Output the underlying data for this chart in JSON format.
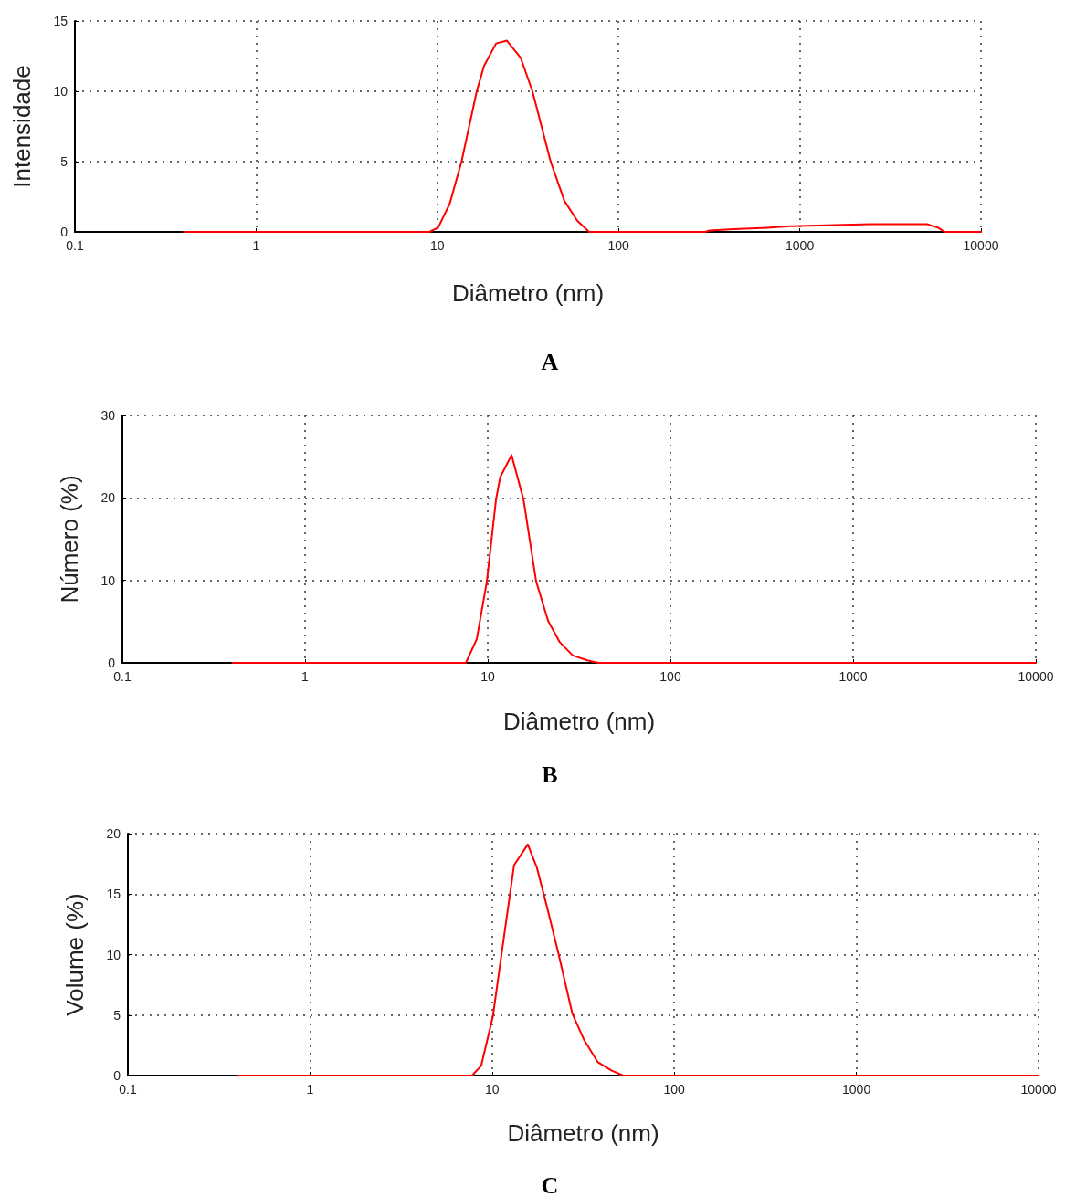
{
  "chart_data": [
    {
      "type": "line",
      "title": "A",
      "xlabel": "Diâmetro (nm)",
      "ylabel": "Intensidade",
      "log": "x",
      "grid": true,
      "line_style": "solid",
      "marker": "none",
      "xlim": [
        0.1,
        10000
      ],
      "xticks": [
        0.1,
        1,
        10,
        100,
        1000,
        10000
      ],
      "ylim": [
        0,
        15
      ],
      "yticks": [
        0,
        5,
        10,
        15
      ],
      "color": "#ff0000",
      "x": [
        0.4,
        9.03,
        10.1,
        11.7,
        13.6,
        16.5,
        18.1,
        21.1,
        24.2,
        28.8,
        33.5,
        42.2,
        50.3,
        59.2,
        68.8,
        300,
        318,
        431,
        661,
        885,
        2455,
        5047,
        5800,
        6300,
        10000
      ],
      "values": [
        0,
        0,
        0.3,
        2,
        5,
        10,
        11.8,
        13.4,
        13.6,
        12.4,
        10,
        5,
        2.2,
        0.8,
        0,
        0,
        0.1,
        0.2,
        0.3,
        0.4,
        0.55,
        0.55,
        0.3,
        0,
        0
      ]
    },
    {
      "type": "line",
      "title": "B",
      "xlabel": "Diâmetro (nm)",
      "ylabel": "Número (%)",
      "log": "x",
      "grid": true,
      "line_style": "solid",
      "marker": "none",
      "xlim": [
        0.1,
        10000
      ],
      "xticks": [
        0.1,
        1,
        10,
        100,
        1000,
        10000
      ],
      "ylim": [
        0,
        30
      ],
      "yticks": [
        0,
        10,
        20,
        30
      ],
      "color": "#ff0000",
      "x": [
        0.4,
        7.59,
        8.71,
        9.89,
        11.1,
        11.7,
        13.5,
        15.7,
        18.4,
        21.4,
        24.8,
        29.2,
        35.1,
        40.3,
        10000
      ],
      "values": [
        0,
        0,
        2.9,
        9.9,
        19.8,
        22.5,
        25.2,
        19.8,
        9.9,
        5.1,
        2.5,
        0.9,
        0.3,
        0,
        0
      ]
    },
    {
      "type": "line",
      "title": "C",
      "xlabel": "Diâmetro (nm)",
      "ylabel": "Volume (%)",
      "log": "x",
      "grid": true,
      "line_style": "solid",
      "marker": "none",
      "xlim": [
        0.1,
        10000
      ],
      "xticks": [
        0.1,
        1,
        10,
        100,
        1000,
        10000
      ],
      "ylim": [
        0,
        20
      ],
      "yticks": [
        0,
        5,
        10,
        15,
        20
      ],
      "color": "#ff0000",
      "x": [
        0.4,
        7.75,
        8.7,
        10.1,
        11.4,
        13.2,
        15.7,
        17.6,
        20.2,
        23.2,
        27.6,
        32.1,
        38.1,
        45.4,
        52.5,
        10000
      ],
      "values": [
        0,
        0,
        0.8,
        4.9,
        10.6,
        17.4,
        19.1,
        17.2,
        13.7,
        10,
        5.1,
        2.9,
        1.1,
        0.4,
        0,
        0
      ]
    }
  ]
}
